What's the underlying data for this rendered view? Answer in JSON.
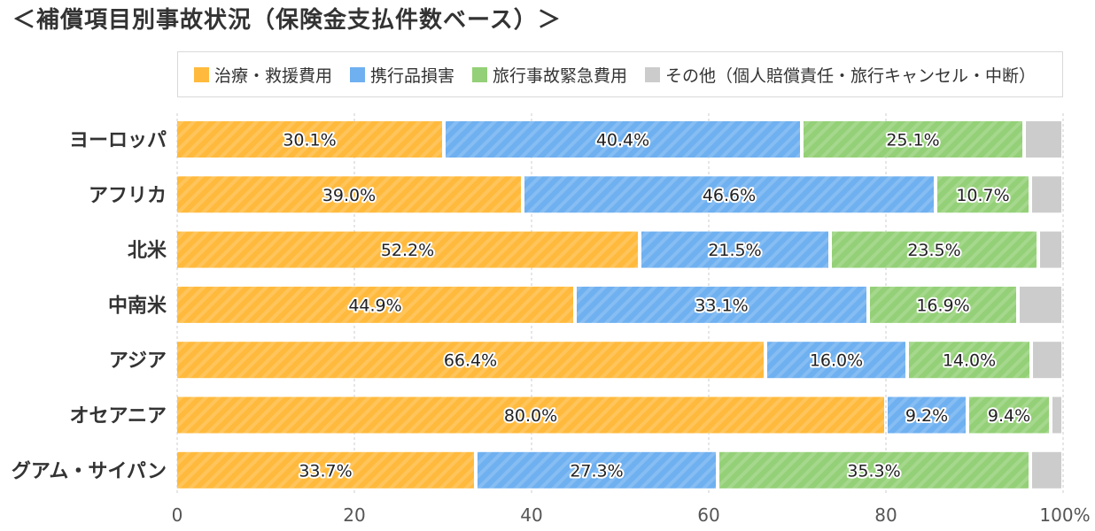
{
  "title": "＜補償項目別事故状況（保険金支払件数ベース）＞",
  "legend": [
    {
      "label": "治療・救援費用",
      "color": "#ffba3d"
    },
    {
      "label": "携行品損害",
      "color": "#6fb0f0"
    },
    {
      "label": "旅行事故緊急費用",
      "color": "#94d077"
    },
    {
      "label": "その他（個人賠償責任・旅行キャンセル・中断）",
      "color": "#cccccc"
    }
  ],
  "chart_data": {
    "type": "bar",
    "orientation": "horizontal",
    "stacked": true,
    "title": "＜補償項目別事故状況（保険金支払件数ベース）＞",
    "categories": [
      "ヨーロッパ",
      "アフリカ",
      "北米",
      "中南米",
      "アジア",
      "オセアニア",
      "グアム・サイパン"
    ],
    "series": [
      {
        "name": "治療・救援費用",
        "color": "#ffba3d",
        "values": [
          30.1,
          39.0,
          52.2,
          44.9,
          66.4,
          80.0,
          33.7
        ],
        "labels": [
          "30.1%",
          "39.0%",
          "52.2%",
          "44.9%",
          "66.4%",
          "80.0%",
          "33.7%"
        ]
      },
      {
        "name": "携行品損害",
        "color": "#6fb0f0",
        "values": [
          40.4,
          46.6,
          21.5,
          33.1,
          16.0,
          9.2,
          27.3
        ],
        "labels": [
          "40.4%",
          "46.6%",
          "21.5%",
          "33.1%",
          "16.0%",
          "9.2%",
          "27.3%"
        ]
      },
      {
        "name": "旅行事故緊急費用",
        "color": "#94d077",
        "values": [
          25.1,
          10.7,
          23.5,
          16.9,
          14.0,
          9.4,
          35.3
        ],
        "labels": [
          "25.1%",
          "10.7%",
          "23.5%",
          "16.9%",
          "14.0%",
          "9.4%",
          "35.3%"
        ]
      },
      {
        "name": "その他（個人賠償責任・旅行キャンセル・中断）",
        "color": "#cccccc",
        "values": [
          4.4,
          3.7,
          2.8,
          5.1,
          3.6,
          1.4,
          3.7
        ],
        "labels": [
          "",
          "",
          "",
          "",
          "",
          "",
          ""
        ]
      }
    ],
    "xlim": [
      0,
      100
    ],
    "xticks": [
      "0",
      "20",
      "40",
      "60",
      "80",
      "100%"
    ],
    "grid": true,
    "legend_position": "top"
  }
}
